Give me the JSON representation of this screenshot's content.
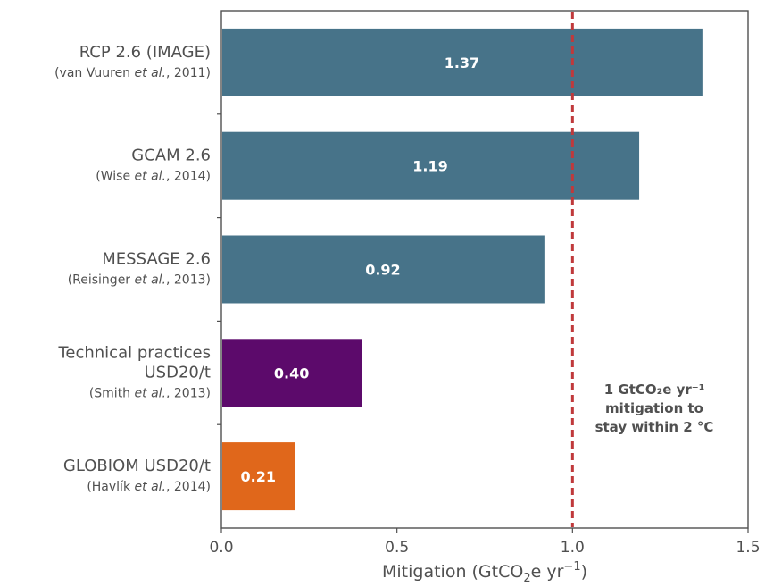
{
  "chart_data": {
    "type": "bar",
    "orientation": "horizontal",
    "categories": [
      {
        "lines": [
          "RCP 2.6 (IMAGE)"
        ],
        "author": "van Vuuren",
        "etal": "et al.",
        "tail": ", 2011)"
      },
      {
        "lines": [
          "GCAM 2.6"
        ],
        "author": "Wise",
        "etal": "et al.",
        "tail": ", 2014)"
      },
      {
        "lines": [
          "MESSAGE 2.6"
        ],
        "author": "Reisinger",
        "etal": "et al.",
        "tail": ", 2013)"
      },
      {
        "lines": [
          "Technical practices",
          "USD20/t"
        ],
        "author": "Smith",
        "etal": "et al.",
        "tail": ", 2013)"
      },
      {
        "lines": [
          "GLOBIOM USD20/t"
        ],
        "author": "Havlík",
        "etal": "et al.",
        "tail": ", 2014)"
      }
    ],
    "values": [
      1.37,
      1.19,
      0.92,
      0.4,
      0.21
    ],
    "value_labels": [
      "1.37",
      "1.19",
      "0.92",
      "0.40",
      "0.21"
    ],
    "colors": [
      "#477389",
      "#477389",
      "#477389",
      "#5c0a6b",
      "#e0671b"
    ],
    "xlim": [
      0,
      1.5
    ],
    "xticks": [
      0.0,
      0.5,
      1.0,
      1.5
    ],
    "xtick_labels": [
      "0.0",
      "0.5",
      "1.0",
      "1.5"
    ],
    "xlabel": {
      "prefix": "Mitigation (GtCO",
      "sub": "2",
      "mid": "e yr",
      "sup": "−1",
      "suffix": ")"
    },
    "reference_line": {
      "x": 1.0,
      "color": "#c0393b",
      "style": "dashed",
      "annotation": [
        "1 GtCO₂e yr⁻¹",
        "mitigation to",
        "stay within 2 °C"
      ]
    },
    "grid": false
  }
}
